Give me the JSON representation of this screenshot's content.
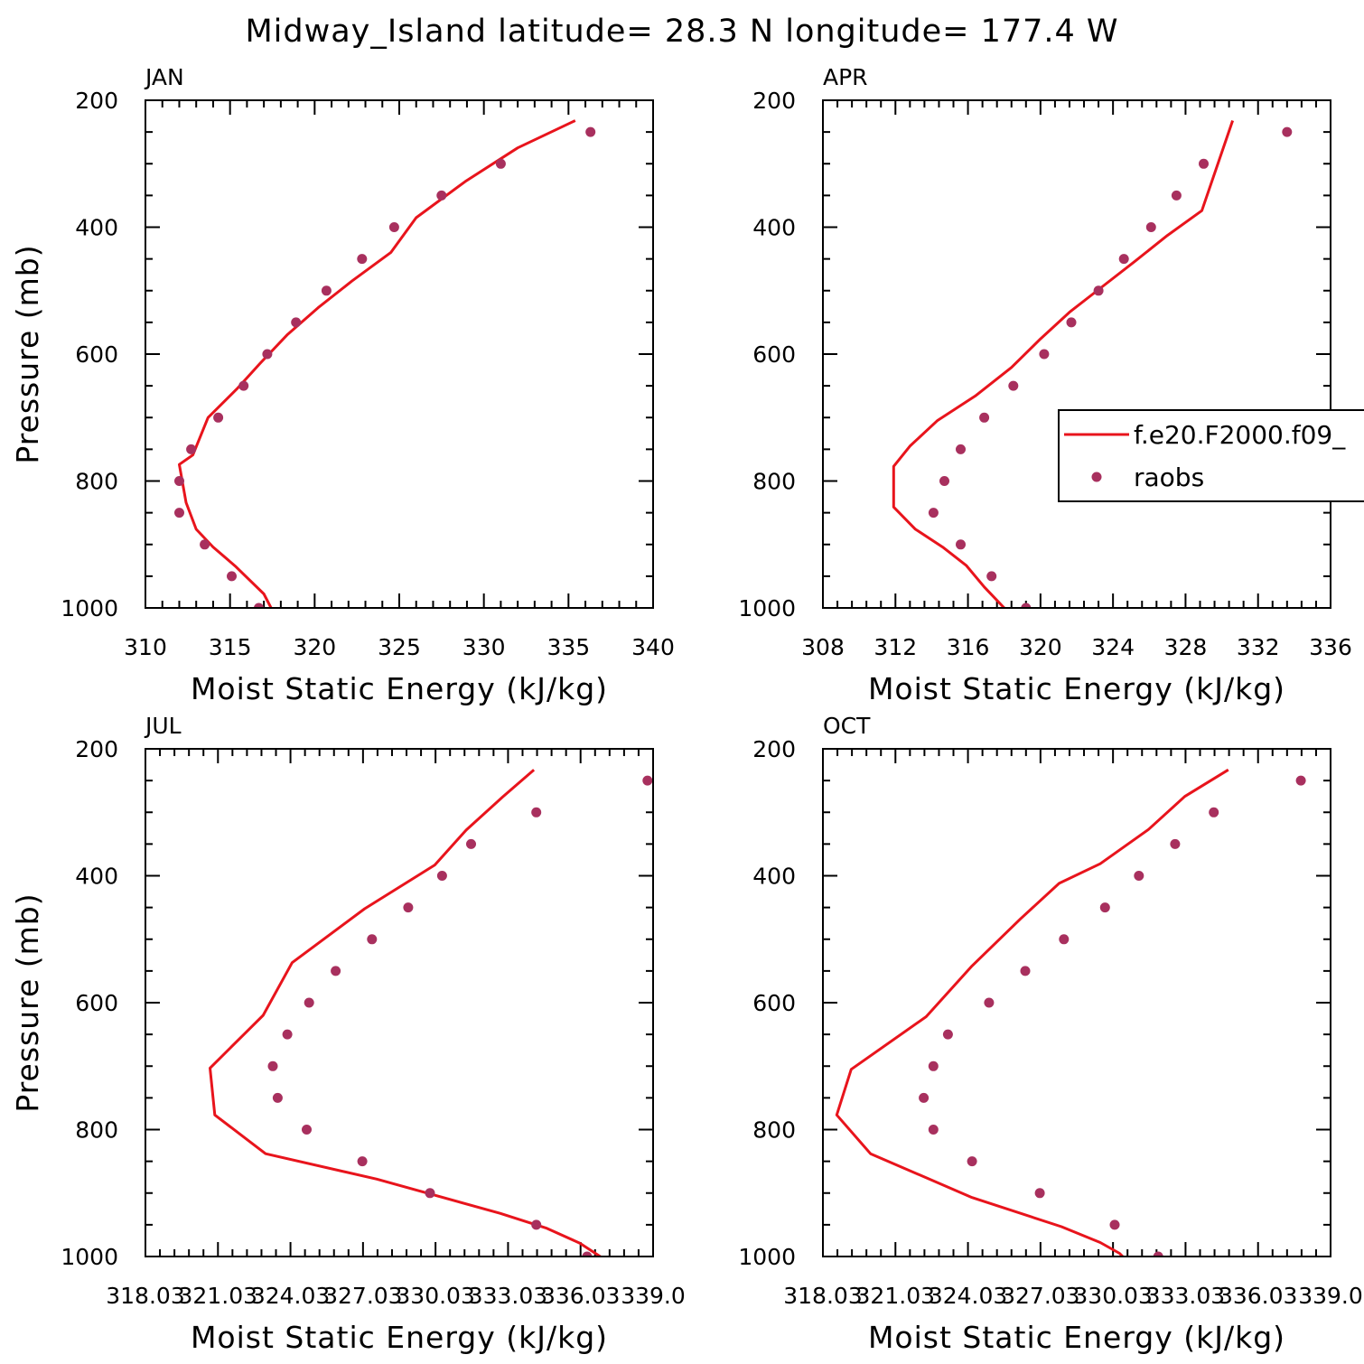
{
  "figure": {
    "suptitle": "Midway_Island  latitude= 28.3 N longitude= 177.4 W"
  },
  "legend": {
    "model_label": "f.e20.F2000.f09_",
    "obs_label": "raobs"
  },
  "colors": {
    "model_line": "#e8141c",
    "obs_marker": "#a8305e",
    "axes": "#000000",
    "background": "#ffffff"
  },
  "chart_data": [
    {
      "type": "line",
      "panel": "JAN",
      "title": "JAN",
      "xlabel": "Moist Static Energy (kJ/kg)",
      "ylabel": "Pressure (mb)",
      "xlim": [
        310,
        340
      ],
      "ylim": [
        1000,
        200
      ],
      "y_inverted": true,
      "xticks": [
        310,
        315,
        320,
        325,
        330,
        335,
        340
      ],
      "xtick_labels": [
        "310",
        "315",
        "320",
        "325",
        "330",
        "335",
        "340"
      ],
      "yticks": [
        200,
        400,
        600,
        800,
        1000
      ],
      "ytick_labels": [
        "200",
        "400",
        "600",
        "800",
        "1000"
      ],
      "series": [
        {
          "name": "f.e20.F2000.f09_",
          "kind": "line",
          "x": [
            317.6,
            317.0,
            315.3,
            314.0,
            313.0,
            312.4,
            312.0,
            312.8,
            313.7,
            315.4,
            316.8,
            318.4,
            320.2,
            322.2,
            324.5,
            326.0,
            328.9,
            332.0,
            335.4
          ],
          "y": [
            1009,
            978,
            934,
            904,
            876,
            834,
            774,
            759,
            700,
            655,
            614,
            569,
            527,
            485,
            440,
            385,
            328,
            275,
            232
          ]
        },
        {
          "name": "raobs",
          "kind": "markers",
          "x": [
            316.7,
            315.1,
            313.5,
            312.0,
            312.0,
            312.7,
            314.3,
            315.8,
            317.2,
            318.9,
            320.7,
            322.8,
            324.7,
            327.5,
            331.0,
            336.3
          ],
          "y": [
            1000,
            950,
            900,
            850,
            800,
            750,
            700,
            650,
            600,
            550,
            500,
            450,
            400,
            350,
            300,
            250
          ]
        }
      ]
    },
    {
      "type": "line",
      "panel": "APR",
      "title": "APR",
      "xlabel": "Moist Static Energy (kJ/kg)",
      "ylabel": "",
      "xlim": [
        308,
        336
      ],
      "ylim": [
        1000,
        200
      ],
      "y_inverted": true,
      "xticks": [
        308,
        312,
        316,
        320,
        324,
        328,
        332,
        336
      ],
      "xtick_labels": [
        "308",
        "312",
        "316",
        "320",
        "324",
        "328",
        "332",
        "336"
      ],
      "yticks": [
        200,
        400,
        600,
        800,
        1000
      ],
      "ytick_labels": [
        "200",
        "400",
        "600",
        "800",
        "1000"
      ],
      "legend_position": "right-middle",
      "series": [
        {
          "name": "f.e20.F2000.f09_",
          "kind": "line",
          "x": [
            318.7,
            318.0,
            316.9,
            315.9,
            314.6,
            313.1,
            311.9,
            311.9,
            312.8,
            314.3,
            316.4,
            318.4,
            320.0,
            321.6,
            323.4,
            325.2,
            327.0,
            328.9,
            330.6
          ],
          "y": [
            1014,
            1000,
            967,
            933,
            904,
            876,
            841,
            777,
            745,
            705,
            666,
            621,
            576,
            534,
            494,
            454,
            413,
            374,
            232
          ]
        },
        {
          "name": "raobs",
          "kind": "markers",
          "x": [
            319.2,
            317.3,
            315.6,
            314.1,
            314.7,
            315.6,
            316.9,
            318.5,
            320.2,
            321.7,
            323.2,
            324.6,
            326.1,
            327.5,
            329.0,
            333.6
          ],
          "y": [
            1000,
            950,
            900,
            850,
            800,
            750,
            700,
            650,
            600,
            550,
            500,
            450,
            400,
            350,
            300,
            250
          ]
        }
      ]
    },
    {
      "type": "line",
      "panel": "JUL",
      "title": "JUL",
      "xlabel": "Moist Static Energy (kJ/kg)",
      "ylabel": "Pressure (mb)",
      "xlim": [
        318.03,
        339.03
      ],
      "ylim": [
        1000,
        200
      ],
      "y_inverted": true,
      "xticks": [
        318.03,
        321.03,
        324.03,
        327.03,
        330.03,
        333.03,
        336.03,
        339.03
      ],
      "xtick_labels": [
        "318.03",
        "321.03",
        "324.03",
        "327.03",
        "330.03",
        "333.03",
        "336.03",
        "339.0"
      ],
      "yticks": [
        200,
        400,
        600,
        800,
        1000
      ],
      "ytick_labels": [
        "200",
        "400",
        "600",
        "800",
        "1000"
      ],
      "series": [
        {
          "name": "f.e20.F2000.f09_",
          "kind": "line",
          "x": [
            337.4,
            336.0,
            334.6,
            332.7,
            327.6,
            323.0,
            320.9,
            320.7,
            322.9,
            324.1,
            327.1,
            330.0,
            331.3,
            332.8,
            334.1
          ],
          "y": [
            1014,
            979,
            955,
            932,
            878,
            838,
            777,
            703,
            620,
            537,
            452,
            383,
            328,
            276,
            233
          ]
        },
        {
          "name": "raobs",
          "kind": "markers",
          "x": [
            336.3,
            334.2,
            329.8,
            327.0,
            324.7,
            323.5,
            323.3,
            323.9,
            324.8,
            325.9,
            327.4,
            328.9,
            330.3,
            331.5,
            334.2,
            338.8
          ],
          "y": [
            1000,
            950,
            900,
            850,
            800,
            750,
            700,
            650,
            600,
            550,
            500,
            450,
            400,
            350,
            300,
            250
          ]
        }
      ]
    },
    {
      "type": "line",
      "panel": "OCT",
      "title": "OCT",
      "xlabel": "Moist Static Energy (kJ/kg)",
      "ylabel": "",
      "xlim": [
        318.03,
        339.03
      ],
      "ylim": [
        1000,
        200
      ],
      "y_inverted": true,
      "xticks": [
        318.03,
        321.03,
        324.03,
        327.03,
        330.03,
        333.03,
        336.03,
        339.03
      ],
      "xtick_labels": [
        "318.03",
        "321.03",
        "324.03",
        "327.03",
        "330.03",
        "333.03",
        "336.03",
        "339.0"
      ],
      "yticks": [
        200,
        400,
        600,
        800,
        1000
      ],
      "ytick_labels": [
        "200",
        "400",
        "600",
        "800",
        "1000"
      ],
      "series": [
        {
          "name": "f.e20.F2000.f09_",
          "kind": "line",
          "x": [
            330.8,
            330.3,
            329.5,
            327.9,
            324.2,
            320.0,
            318.6,
            319.2,
            322.3,
            324.2,
            326.2,
            327.8,
            329.5,
            331.5,
            333.0,
            334.8
          ],
          "y": [
            1014,
            995,
            978,
            953,
            907,
            838,
            777,
            705,
            622,
            542,
            468,
            412,
            381,
            327,
            275,
            233
          ]
        },
        {
          "name": "raobs",
          "kind": "markers",
          "x": [
            331.9,
            330.1,
            327.0,
            324.2,
            322.6,
            322.2,
            322.6,
            323.2,
            324.9,
            326.4,
            328.0,
            329.7,
            331.1,
            332.6,
            334.2,
            337.8
          ],
          "y": [
            1000,
            950,
            900,
            850,
            800,
            750,
            700,
            650,
            600,
            550,
            500,
            450,
            400,
            350,
            300,
            250
          ]
        }
      ]
    }
  ]
}
